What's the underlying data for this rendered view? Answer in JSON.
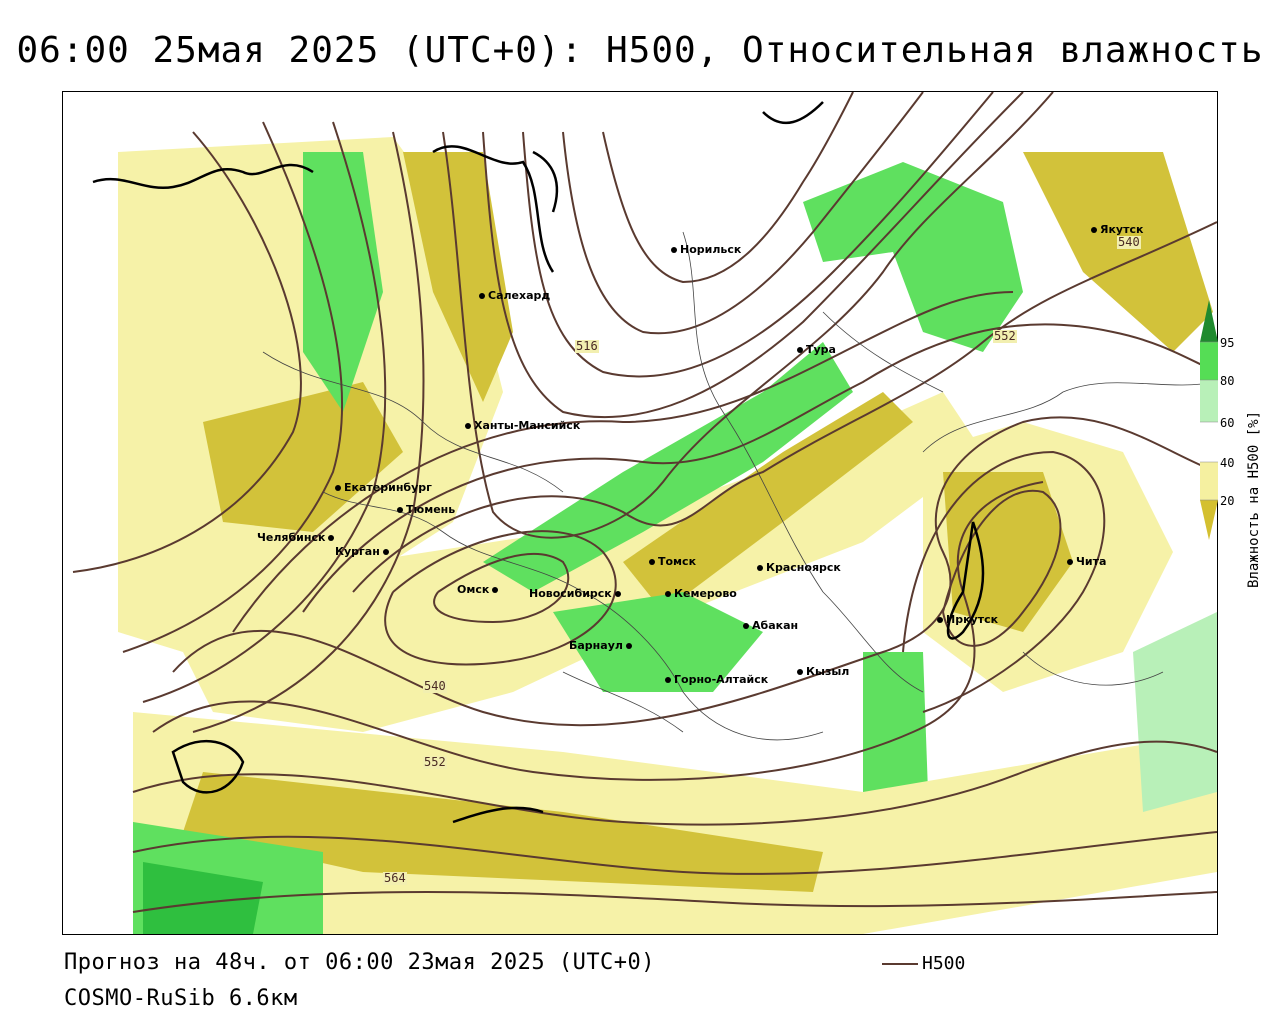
{
  "title": "06:00 25мая 2025 (UTC+0): H500, Относительная влажность",
  "footer": {
    "forecast": "Прогноз на 48ч. от 06:00 23мая 2025 (UTC+0)",
    "model": "COSMO-RuSib 6.6км",
    "line_legend": "H500"
  },
  "legend": {
    "axis_label": "Влажность на H500 [%]",
    "ticks": [
      "95",
      "80",
      "60",
      "40",
      "20"
    ],
    "colors": [
      "#1f8a2e",
      "#55dd55",
      "#b8f0b8",
      "#ffffff",
      "#f5f0a0",
      "#d4c030"
    ]
  },
  "colors": {
    "contour": "#5a3a30",
    "humid_dark": "#2fbf3f",
    "humid_mid": "#5fe05f",
    "humid_light": "#b8f0b8",
    "dry_light": "#f6f2a8",
    "dry_dark": "#d2c23a"
  },
  "cities": [
    "Якутск",
    "Норильск",
    "Салехард",
    "Тура",
    "Ханты-Мансийск",
    "Екатеринбург",
    "Тюмень",
    "Челябинск",
    "Курган",
    "Омск",
    "Новосибирск",
    "Томск",
    "Красноярск",
    "Кемерово",
    "Абакан",
    "Барнаул",
    "Горно-Алтайск",
    "Кызыл",
    "Иркутск",
    "Чита"
  ],
  "contour_labels": [
    "516",
    "540",
    "552",
    "540",
    "552",
    "564"
  ]
}
